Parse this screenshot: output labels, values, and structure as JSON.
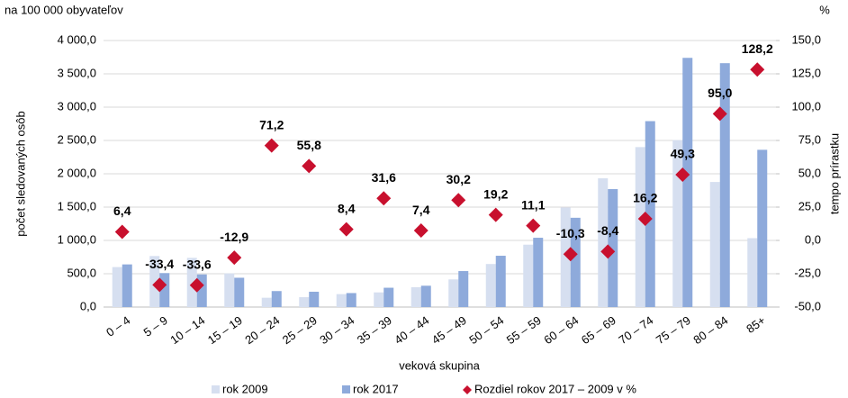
{
  "chart_data": {
    "type": "bar",
    "y_unit_label": "na 100 000 obyvateľov",
    "y2_unit_label": "%",
    "ylabel": "počet sledovaných osôb",
    "y2label": "tempo prírastku",
    "xlabel": "veková skupina",
    "categories": [
      "0 – 4",
      "5 – 9",
      "10 – 14",
      "15 – 19",
      "20 – 24",
      "25 – 29",
      "30 – 34",
      "35 – 39",
      "40 – 44",
      "45 – 49",
      "50 – 54",
      "55 – 59",
      "60 – 64",
      "65 – 69",
      "70 – 74",
      "75 – 79",
      "80 – 84",
      "85+"
    ],
    "series": [
      {
        "name": "rok 2009",
        "type": "bar",
        "color": "#d6dff0",
        "values": [
          600,
          766,
          738,
          505,
          140,
          148,
          194,
          220,
          298,
          415,
          646,
          936,
          1494,
          1932,
          2401,
          2505,
          1877,
          1034
        ]
      },
      {
        "name": "rok 2017",
        "type": "bar",
        "color": "#8eaadb",
        "values": [
          640,
          510,
          490,
          440,
          240,
          230,
          210,
          290,
          320,
          540,
          770,
          1040,
          1340,
          1770,
          2790,
          3740,
          3660,
          2360
        ]
      },
      {
        "name": "Rozdiel rokov 2017 – 2009 v %",
        "type": "scatter",
        "axis": "y2",
        "color": "#c8102e",
        "values": [
          6.4,
          -33.4,
          -33.6,
          -12.9,
          71.2,
          55.8,
          8.4,
          31.6,
          7.4,
          30.2,
          19.2,
          11.1,
          -10.3,
          -8.4,
          16.2,
          49.3,
          95.0,
          128.2
        ],
        "value_labels": [
          "6,4",
          "-33,4",
          "-33,6",
          "-12,9",
          "71,2",
          "55,8",
          "8,4",
          "31,6",
          "7,4",
          "30,2",
          "19,2",
          "11,1",
          "-10,3",
          "-8,4",
          "16,2",
          "49,3",
          "95,0",
          "128,2"
        ]
      }
    ],
    "ylim": [
      0,
      4000
    ],
    "yticks": [
      {
        "value": 0,
        "label": "0,0"
      },
      {
        "value": 500,
        "label": "500,0"
      },
      {
        "value": 1000,
        "label": "1 000,0"
      },
      {
        "value": 1500,
        "label": "1 500,0"
      },
      {
        "value": 2000,
        "label": "2 000,0"
      },
      {
        "value": 2500,
        "label": "2 500,0"
      },
      {
        "value": 3000,
        "label": "3 000,0"
      },
      {
        "value": 3500,
        "label": "3 500,0"
      },
      {
        "value": 4000,
        "label": "4 000,0"
      }
    ],
    "y2lim": [
      -50,
      150
    ],
    "y2ticks": [
      {
        "value": -50,
        "label": "-50,0"
      },
      {
        "value": -25,
        "label": "-25,0"
      },
      {
        "value": 0,
        "label": "0,0"
      },
      {
        "value": 25,
        "label": "25,0"
      },
      {
        "value": 50,
        "label": "50,0"
      },
      {
        "value": 75,
        "label": "75,0"
      },
      {
        "value": 100,
        "label": "100,0"
      },
      {
        "value": 125,
        "label": "125,0"
      },
      {
        "value": 150,
        "label": "150,0"
      }
    ],
    "grid": true
  }
}
